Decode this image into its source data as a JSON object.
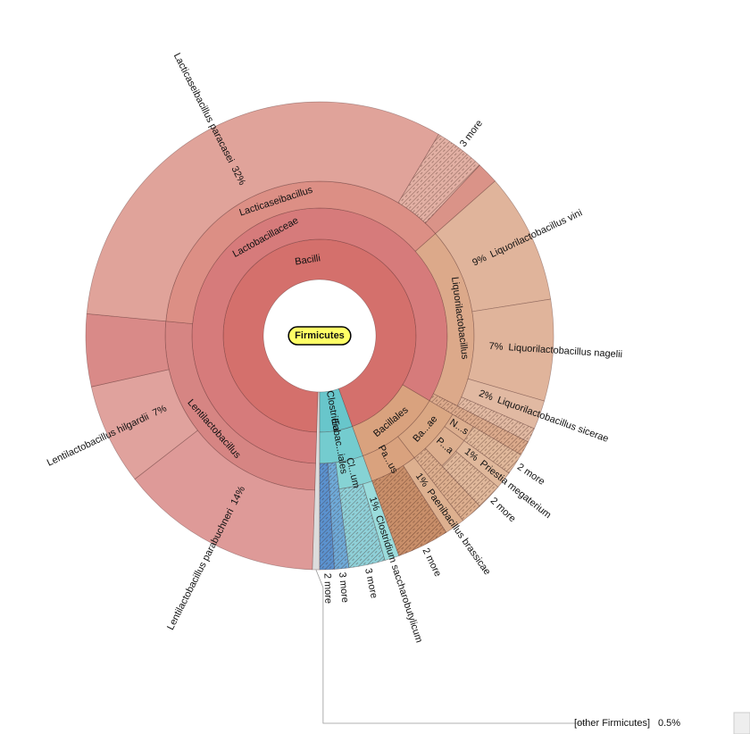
{
  "chart_data": {
    "type": "sunburst",
    "root": {
      "name": "Firmicutes",
      "children": [
        {
          "name": "Bacilli",
          "value": 94,
          "color": "#d4706c",
          "children": [
            {
              "name": "Lactobacillaceae",
              "value": 83,
              "color": "#d67b7b",
              "children": [
                {
                  "name": "Lentilactobacillus",
                  "value": 26,
                  "color": "#d68583",
                  "children": [
                    {
                      "name": "Lentilactobacillus parabuchneri",
                      "value": 14,
                      "value_label": "14%",
                      "color": "#de9a98"
                    },
                    {
                      "name": "Lentilactobacillus hilgardii",
                      "value": 7,
                      "value_label": "7%",
                      "color": "#e0a29d"
                    },
                    {
                      "name": null,
                      "value": 5,
                      "color": "#d98a88"
                    }
                  ]
                },
                {
                  "name": "Lacticaseibacillus",
                  "value": 37,
                  "color": "#dc8f85",
                  "children": [
                    {
                      "name": "Lacticaseibacillus paracasei",
                      "value": 32,
                      "value_label": "32%",
                      "color": "#e0a39a"
                    },
                    {
                      "name": "3 more",
                      "value": 3.5,
                      "color": "#e2b0a4",
                      "hatch": true
                    },
                    {
                      "name": null,
                      "value": 1.5,
                      "color": "#da9388"
                    }
                  ]
                },
                {
                  "name": "Liquorilactobacillus",
                  "value": 19,
                  "color": "#dca98a",
                  "children": [
                    {
                      "name": "Liquorilactobacillus vini",
                      "value": 9,
                      "value_label": "9%",
                      "color": "#e0b49b"
                    },
                    {
                      "name": "Liquorilactobacillus nagelii",
                      "value": 7,
                      "value_label": "7%",
                      "color": "#e0b49b"
                    },
                    {
                      "name": "Liquorilactobacillus sicerae",
                      "value": 2,
                      "value_label": "2%",
                      "color": "#e1b9a2"
                    },
                    {
                      "name": null,
                      "value": 1,
                      "color": "#e1b9a2",
                      "hatch": true
                    }
                  ]
                },
                {
                  "name": null,
                  "value": 1,
                  "color": "#dbaa8c",
                  "hatch": true
                }
              ]
            },
            {
              "name": "Bacillales",
              "value": 11,
              "color": "#d9a27e",
              "children": [
                {
                  "name": "Ba...ae",
                  "value": 6,
                  "color": "#daa783",
                  "children": [
                    {
                      "name": "N...s",
                      "value": 1.5,
                      "color": "#dcae8e",
                      "children": [
                        {
                          "name": "2 more",
                          "value": 1.5,
                          "color": "#e0b89b",
                          "hatch": true
                        }
                      ]
                    },
                    {
                      "name": "P...a",
                      "value": 3,
                      "color": "#dcae8e",
                      "children": [
                        {
                          "name": "Priestia megaterium",
                          "value": 1.2,
                          "value_label": "1%",
                          "color": "#e0b89b"
                        },
                        {
                          "name": "2 more",
                          "value": 1.8,
                          "color": "#e0b89b",
                          "hatch": true
                        }
                      ]
                    },
                    {
                      "name": null,
                      "value": 1.5,
                      "color": "#dcae8e",
                      "hatch": true
                    }
                  ]
                },
                {
                  "name": "Pa...us",
                  "value": 5,
                  "color": "#d9a27e",
                  "children": [
                    {
                      "name": "Paenibacillus brassicae",
                      "value": 1.4,
                      "value_label": "1%",
                      "color": "#ddb08f"
                    },
                    {
                      "name": "2 more",
                      "value": 3.6,
                      "color": "#c98f6a",
                      "hatch": true
                    }
                  ]
                }
              ]
            }
          ]
        },
        {
          "name": "Clostridia",
          "value": 5.5,
          "color": "#68c6cb",
          "children": [
            {
              "name": "Eubac...iales",
              "value": 5.5,
              "color": "#74cccf",
              "children": [
                {
                  "name": "Cl...um",
                  "value": 3.5,
                  "color": "#86d3d4",
                  "children": [
                    {
                      "name": "Clostridium saccharobutylicum",
                      "value": 1,
                      "value_label": "1%",
                      "color": "#9adcdc"
                    },
                    {
                      "name": "3 more",
                      "value": 2.5,
                      "color": "#8fd0d8",
                      "hatch": true
                    }
                  ]
                },
                {
                  "name": "3 more",
                  "value": 1,
                  "color": "#6faad8",
                  "hatch": true
                },
                {
                  "name": "2 more",
                  "value": 1,
                  "color": "#5b92cf",
                  "hatch": true
                }
              ]
            }
          ]
        }
      ]
    },
    "other": {
      "name": "[other Firmicutes]",
      "value": 0.5,
      "value_label": "0.5%",
      "color": "#dcdcdc"
    }
  }
}
